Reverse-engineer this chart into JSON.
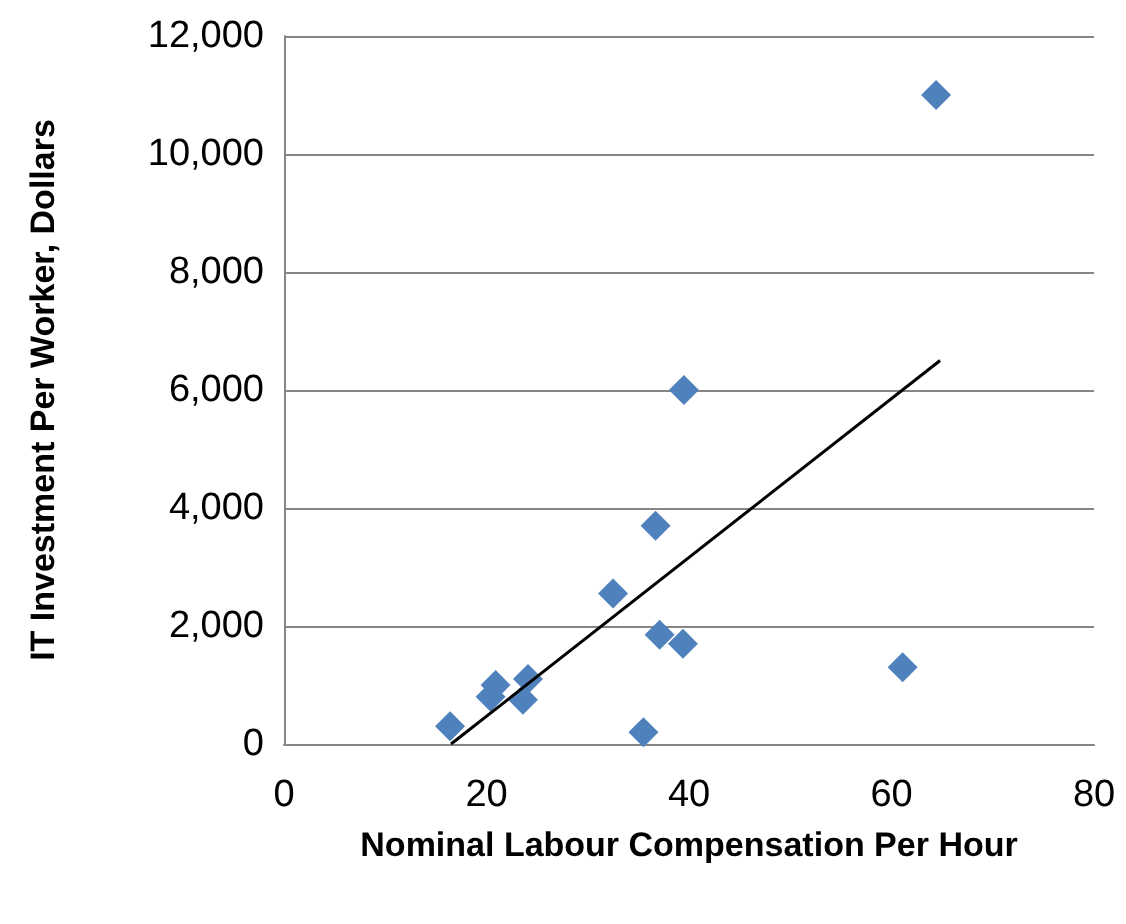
{
  "chart_data": {
    "type": "scatter",
    "xlabel": "Nominal Labour Compensation Per Hour",
    "ylabel": "IT Investment Per Worker, Dollars",
    "marker": "diamond",
    "series": [
      {
        "color": "#4f81bd",
        "x": [
          16.4,
          20.4,
          20.9,
          23.6,
          24.1,
          32.5,
          35.5,
          36.7,
          37.1,
          39.4,
          39.5,
          61.1,
          64.4
        ],
        "values": [
          300,
          800,
          1000,
          750,
          1100,
          2550,
          200,
          3700,
          1850,
          1700,
          6000,
          1300,
          11000
        ]
      },
      {
        "type": "line",
        "color": "#000000",
        "marker": "none",
        "x": [
          16.5,
          64.8
        ],
        "values": [
          0,
          6500
        ]
      }
    ],
    "xlim": [
      0,
      80
    ],
    "xticks": [
      0,
      20,
      40,
      60,
      80
    ],
    "ylim": [
      0,
      12000
    ],
    "yticks": [
      0,
      {
        "value": 2000,
        "label": "2,000"
      },
      {
        "value": 4000,
        "label": "4,000"
      },
      {
        "value": 6000,
        "label": "6,000"
      },
      {
        "value": 8000,
        "label": "8,000"
      },
      {
        "value": 10000,
        "label": "10,000"
      },
      {
        "value": 12000,
        "label": "12,000"
      }
    ],
    "grid": "y"
  }
}
